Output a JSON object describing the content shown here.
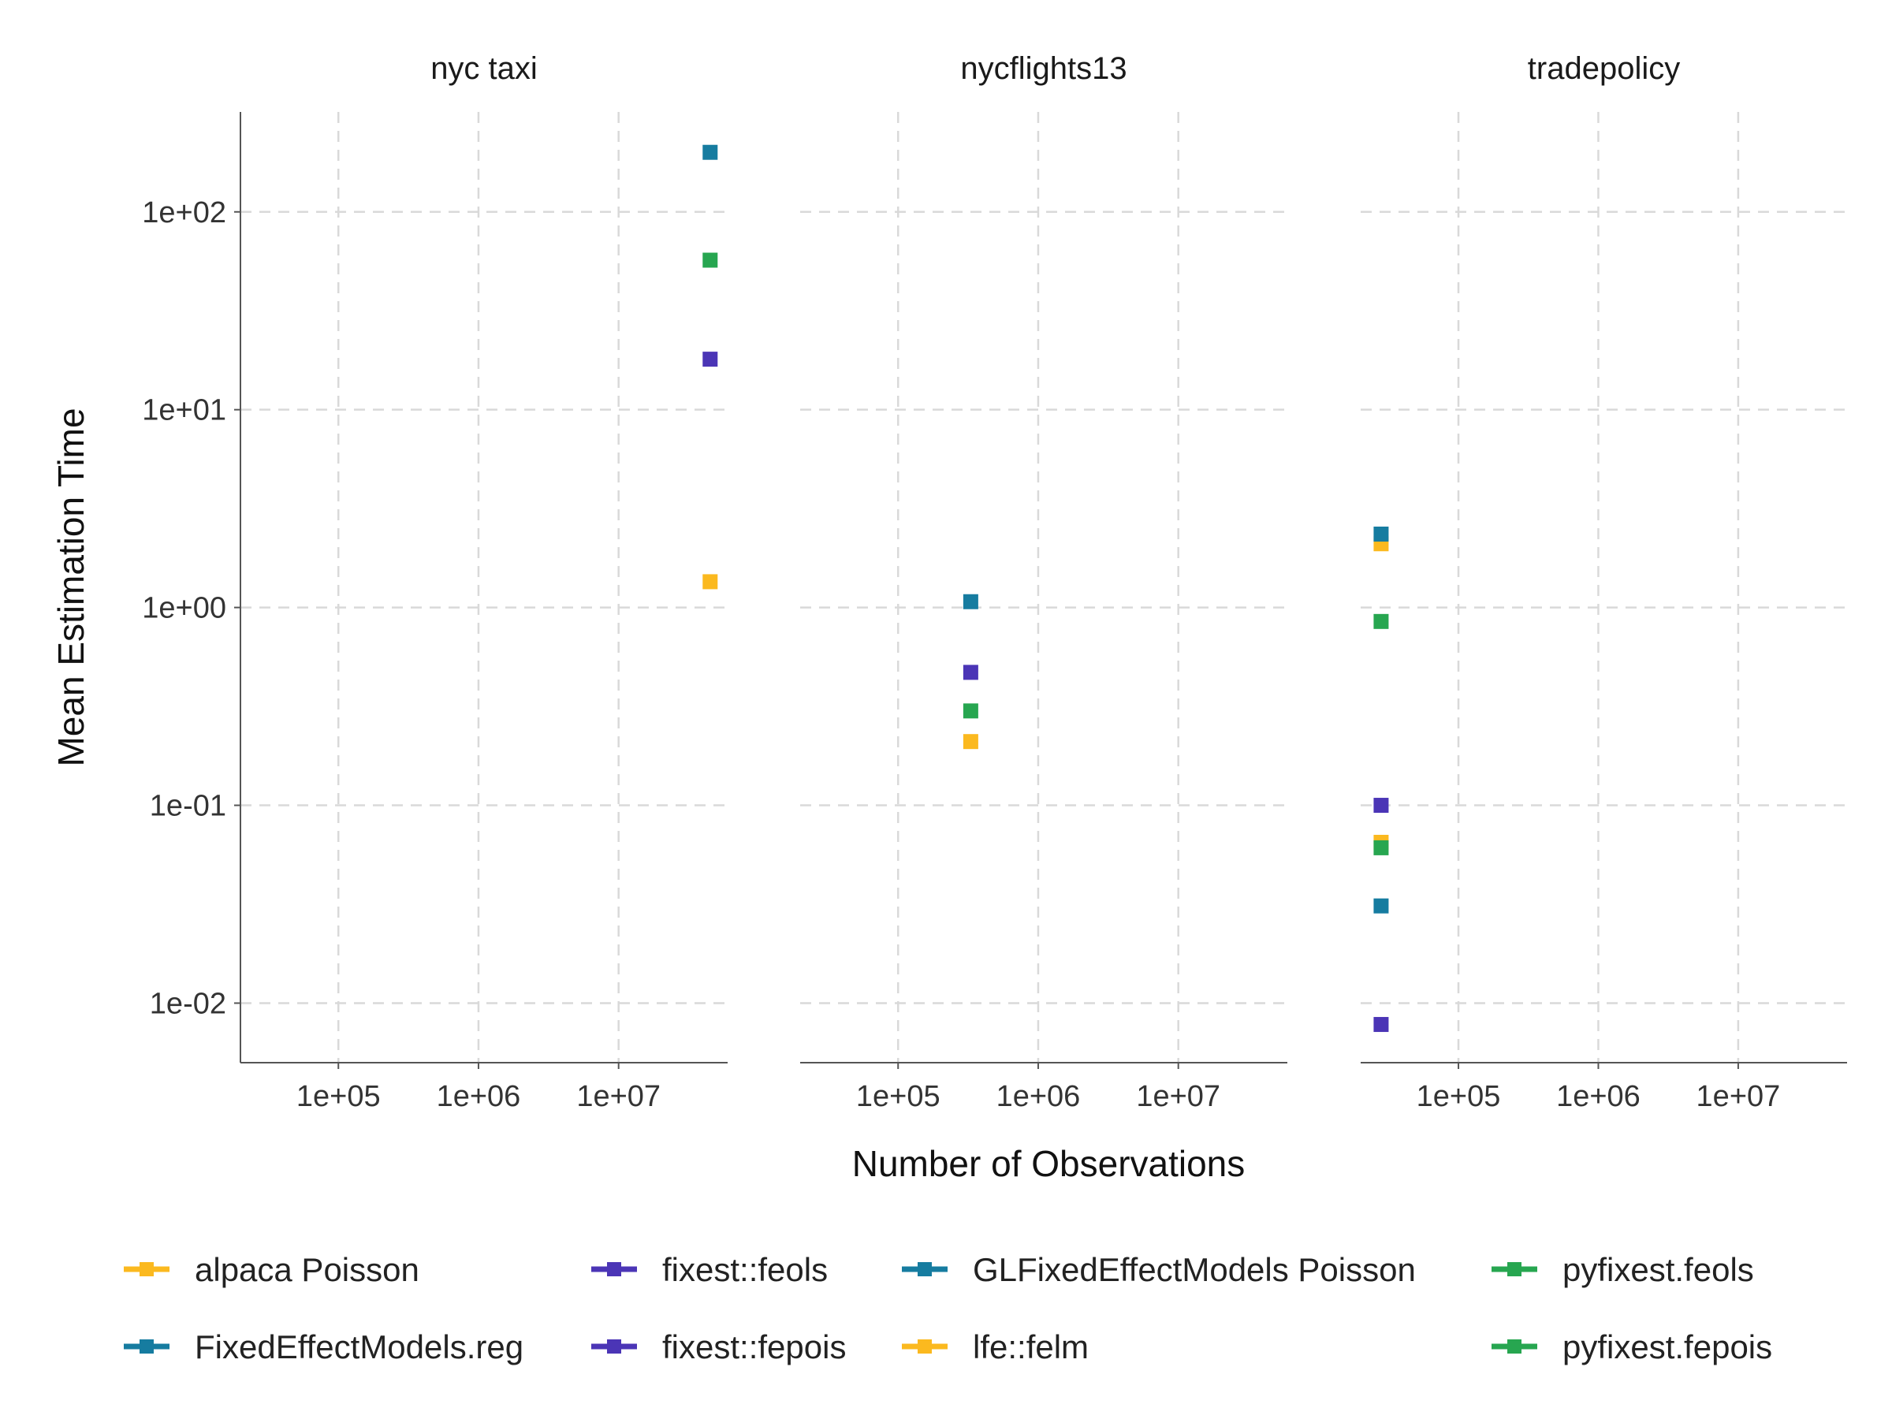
{
  "chart_data": {
    "type": "scatter",
    "xlabel": "Number of Observations",
    "ylabel": "Mean Estimation Time",
    "xscale": "log10",
    "yscale": "log10",
    "xlim": [
      20000,
      60000000
    ],
    "ylim": [
      0.005,
      320
    ],
    "x_ticks": [
      100000,
      1000000,
      10000000
    ],
    "x_tick_labels": [
      "1e+05",
      "1e+06",
      "1e+07"
    ],
    "y_ticks": [
      0.01,
      0.1,
      1,
      10,
      100
    ],
    "y_tick_labels": [
      "1e-02",
      "1e-01",
      "1e+00",
      "1e+01",
      "1e+02"
    ],
    "grid": true,
    "legend_position": "bottom",
    "facets": [
      "nyc taxi",
      "nycflights13",
      "tradepolicy"
    ],
    "series": [
      {
        "name": "alpaca Poisson",
        "color": "#FBB91F",
        "points": [
          {
            "facet": "nyc taxi",
            "x": 45000000,
            "y": 1.35
          },
          {
            "facet": "nycflights13",
            "x": 330000,
            "y": 0.21
          },
          {
            "facet": "tradepolicy",
            "x": 28000,
            "y": 2.1
          }
        ]
      },
      {
        "name": "FixedEffectModels.reg",
        "color": "#167CA0",
        "points": [
          {
            "facet": "tradepolicy",
            "x": 28000,
            "y": 0.031
          }
        ]
      },
      {
        "name": "fixest::feols",
        "color": "#4B35B6",
        "points": [
          {
            "facet": "nyc taxi",
            "x": 45000000,
            "y": 18
          },
          {
            "facet": "nycflights13",
            "x": 330000,
            "y": 0.47
          },
          {
            "facet": "tradepolicy",
            "x": 28000,
            "y": 0.1
          }
        ]
      },
      {
        "name": "fixest::fepois",
        "color": "#4B35B6",
        "points": [
          {
            "facet": "tradepolicy",
            "x": 28000,
            "y": 0.0078
          }
        ]
      },
      {
        "name": "GLFixedEffectModels Poisson",
        "color": "#167CA0",
        "points": [
          {
            "facet": "nyc taxi",
            "x": 45000000,
            "y": 200
          },
          {
            "facet": "nycflights13",
            "x": 330000,
            "y": 1.07
          },
          {
            "facet": "tradepolicy",
            "x": 28000,
            "y": 2.35
          }
        ]
      },
      {
        "name": "lfe::felm",
        "color": "#FBB91F",
        "points": [
          {
            "facet": "tradepolicy",
            "x": 28000,
            "y": 0.065
          }
        ]
      },
      {
        "name": "pyfixest.feols",
        "color": "#27A650",
        "points": [
          {
            "facet": "nyc taxi",
            "x": 45000000,
            "y": 57
          },
          {
            "facet": "nycflights13",
            "x": 330000,
            "y": 0.3
          },
          {
            "facet": "tradepolicy",
            "x": 28000,
            "y": 0.85
          }
        ]
      },
      {
        "name": "pyfixest.fepois",
        "color": "#27A650",
        "points": [
          {
            "facet": "tradepolicy",
            "x": 28000,
            "y": 0.061
          }
        ]
      }
    ],
    "legend": [
      {
        "label": "alpaca Poisson",
        "color": "#FBB91F"
      },
      {
        "label": "FixedEffectModels.reg",
        "color": "#167CA0"
      },
      {
        "label": "fixest::feols",
        "color": "#4B35B6"
      },
      {
        "label": "fixest::fepois",
        "color": "#4B35B6"
      },
      {
        "label": "GLFixedEffectModels Poisson",
        "color": "#167CA0"
      },
      {
        "label": "lfe::felm",
        "color": "#FBB91F"
      },
      {
        "label": "pyfixest.feols",
        "color": "#27A650"
      },
      {
        "label": "pyfixest.fepois",
        "color": "#27A650"
      }
    ]
  }
}
